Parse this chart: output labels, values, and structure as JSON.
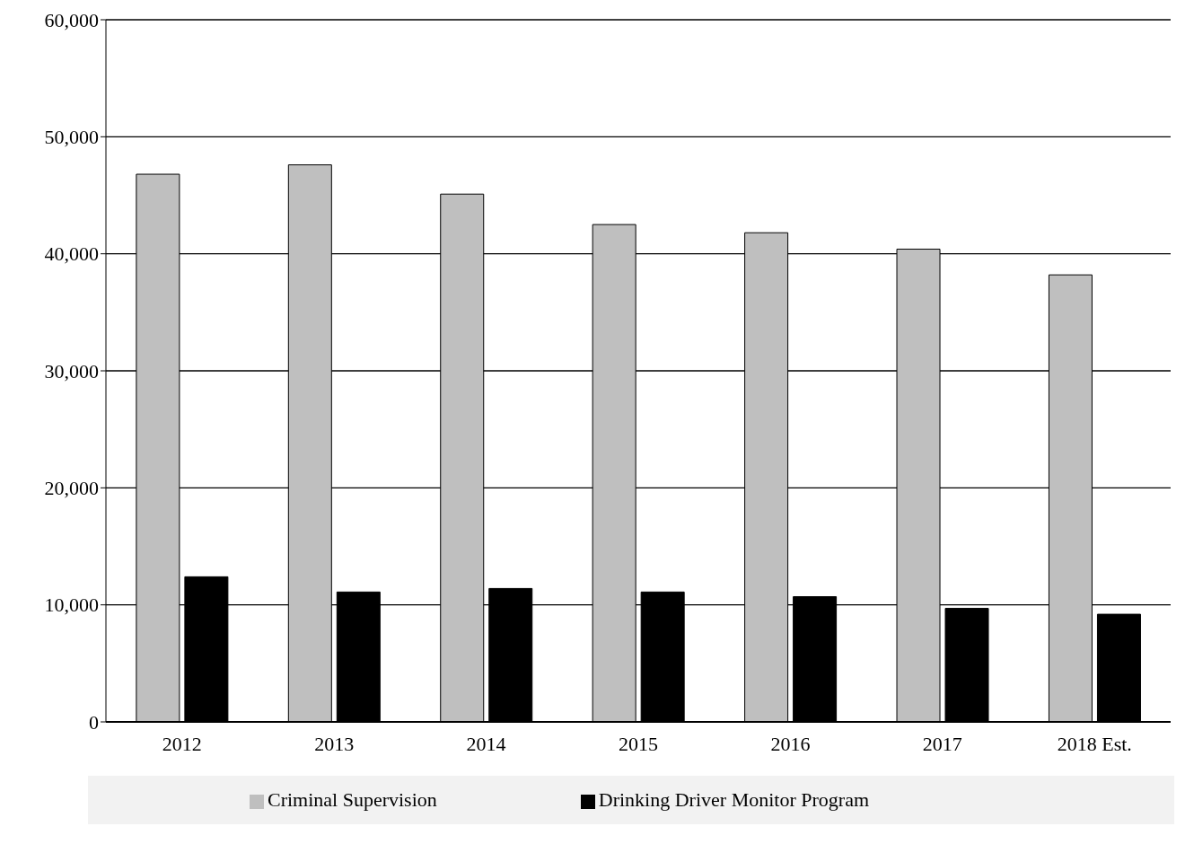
{
  "chart_data": {
    "type": "bar",
    "categories": [
      "2012",
      "2013",
      "2014",
      "2015",
      "2016",
      "2017",
      "2018 Est."
    ],
    "series": [
      {
        "name": "Criminal Supervision",
        "color": "#bfbfbf",
        "values": [
          46800,
          47600,
          45100,
          42500,
          41800,
          40400,
          38200
        ]
      },
      {
        "name": "Drinking Driver Monitor Program",
        "color": "#000000",
        "values": [
          12400,
          11100,
          11400,
          11100,
          10700,
          9700,
          9200
        ]
      }
    ],
    "ylim": [
      0,
      60000
    ],
    "yticks": [
      {
        "value": 0,
        "label": "0"
      },
      {
        "value": 10000,
        "label": "10,000"
      },
      {
        "value": 20000,
        "label": "20,000"
      },
      {
        "value": 30000,
        "label": "30,000"
      },
      {
        "value": 40000,
        "label": "40,000"
      },
      {
        "value": 50000,
        "label": "50,000"
      },
      {
        "value": 60000,
        "label": "60,000"
      }
    ],
    "grid": "y",
    "legend": "bottom"
  }
}
